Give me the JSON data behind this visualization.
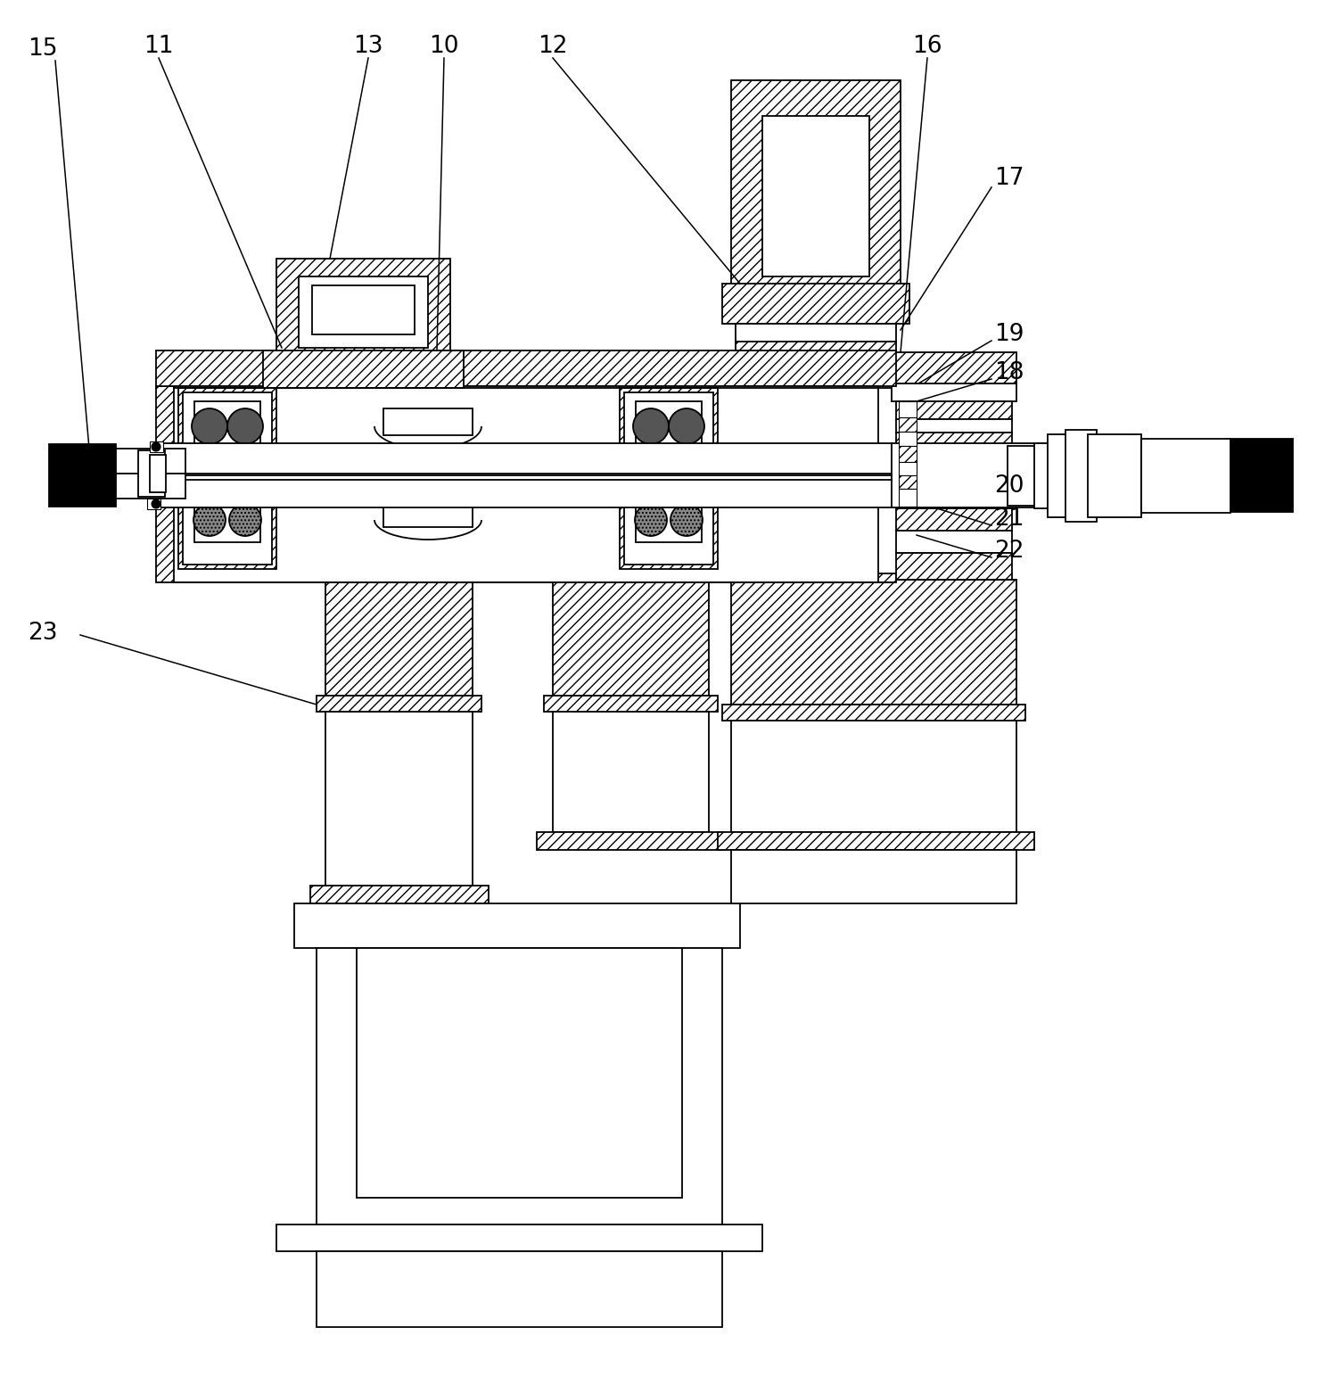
{
  "bg_color": "#ffffff",
  "figsize": [
    15.04,
    15.44
  ],
  "dpi": 100,
  "lw": 1.3
}
